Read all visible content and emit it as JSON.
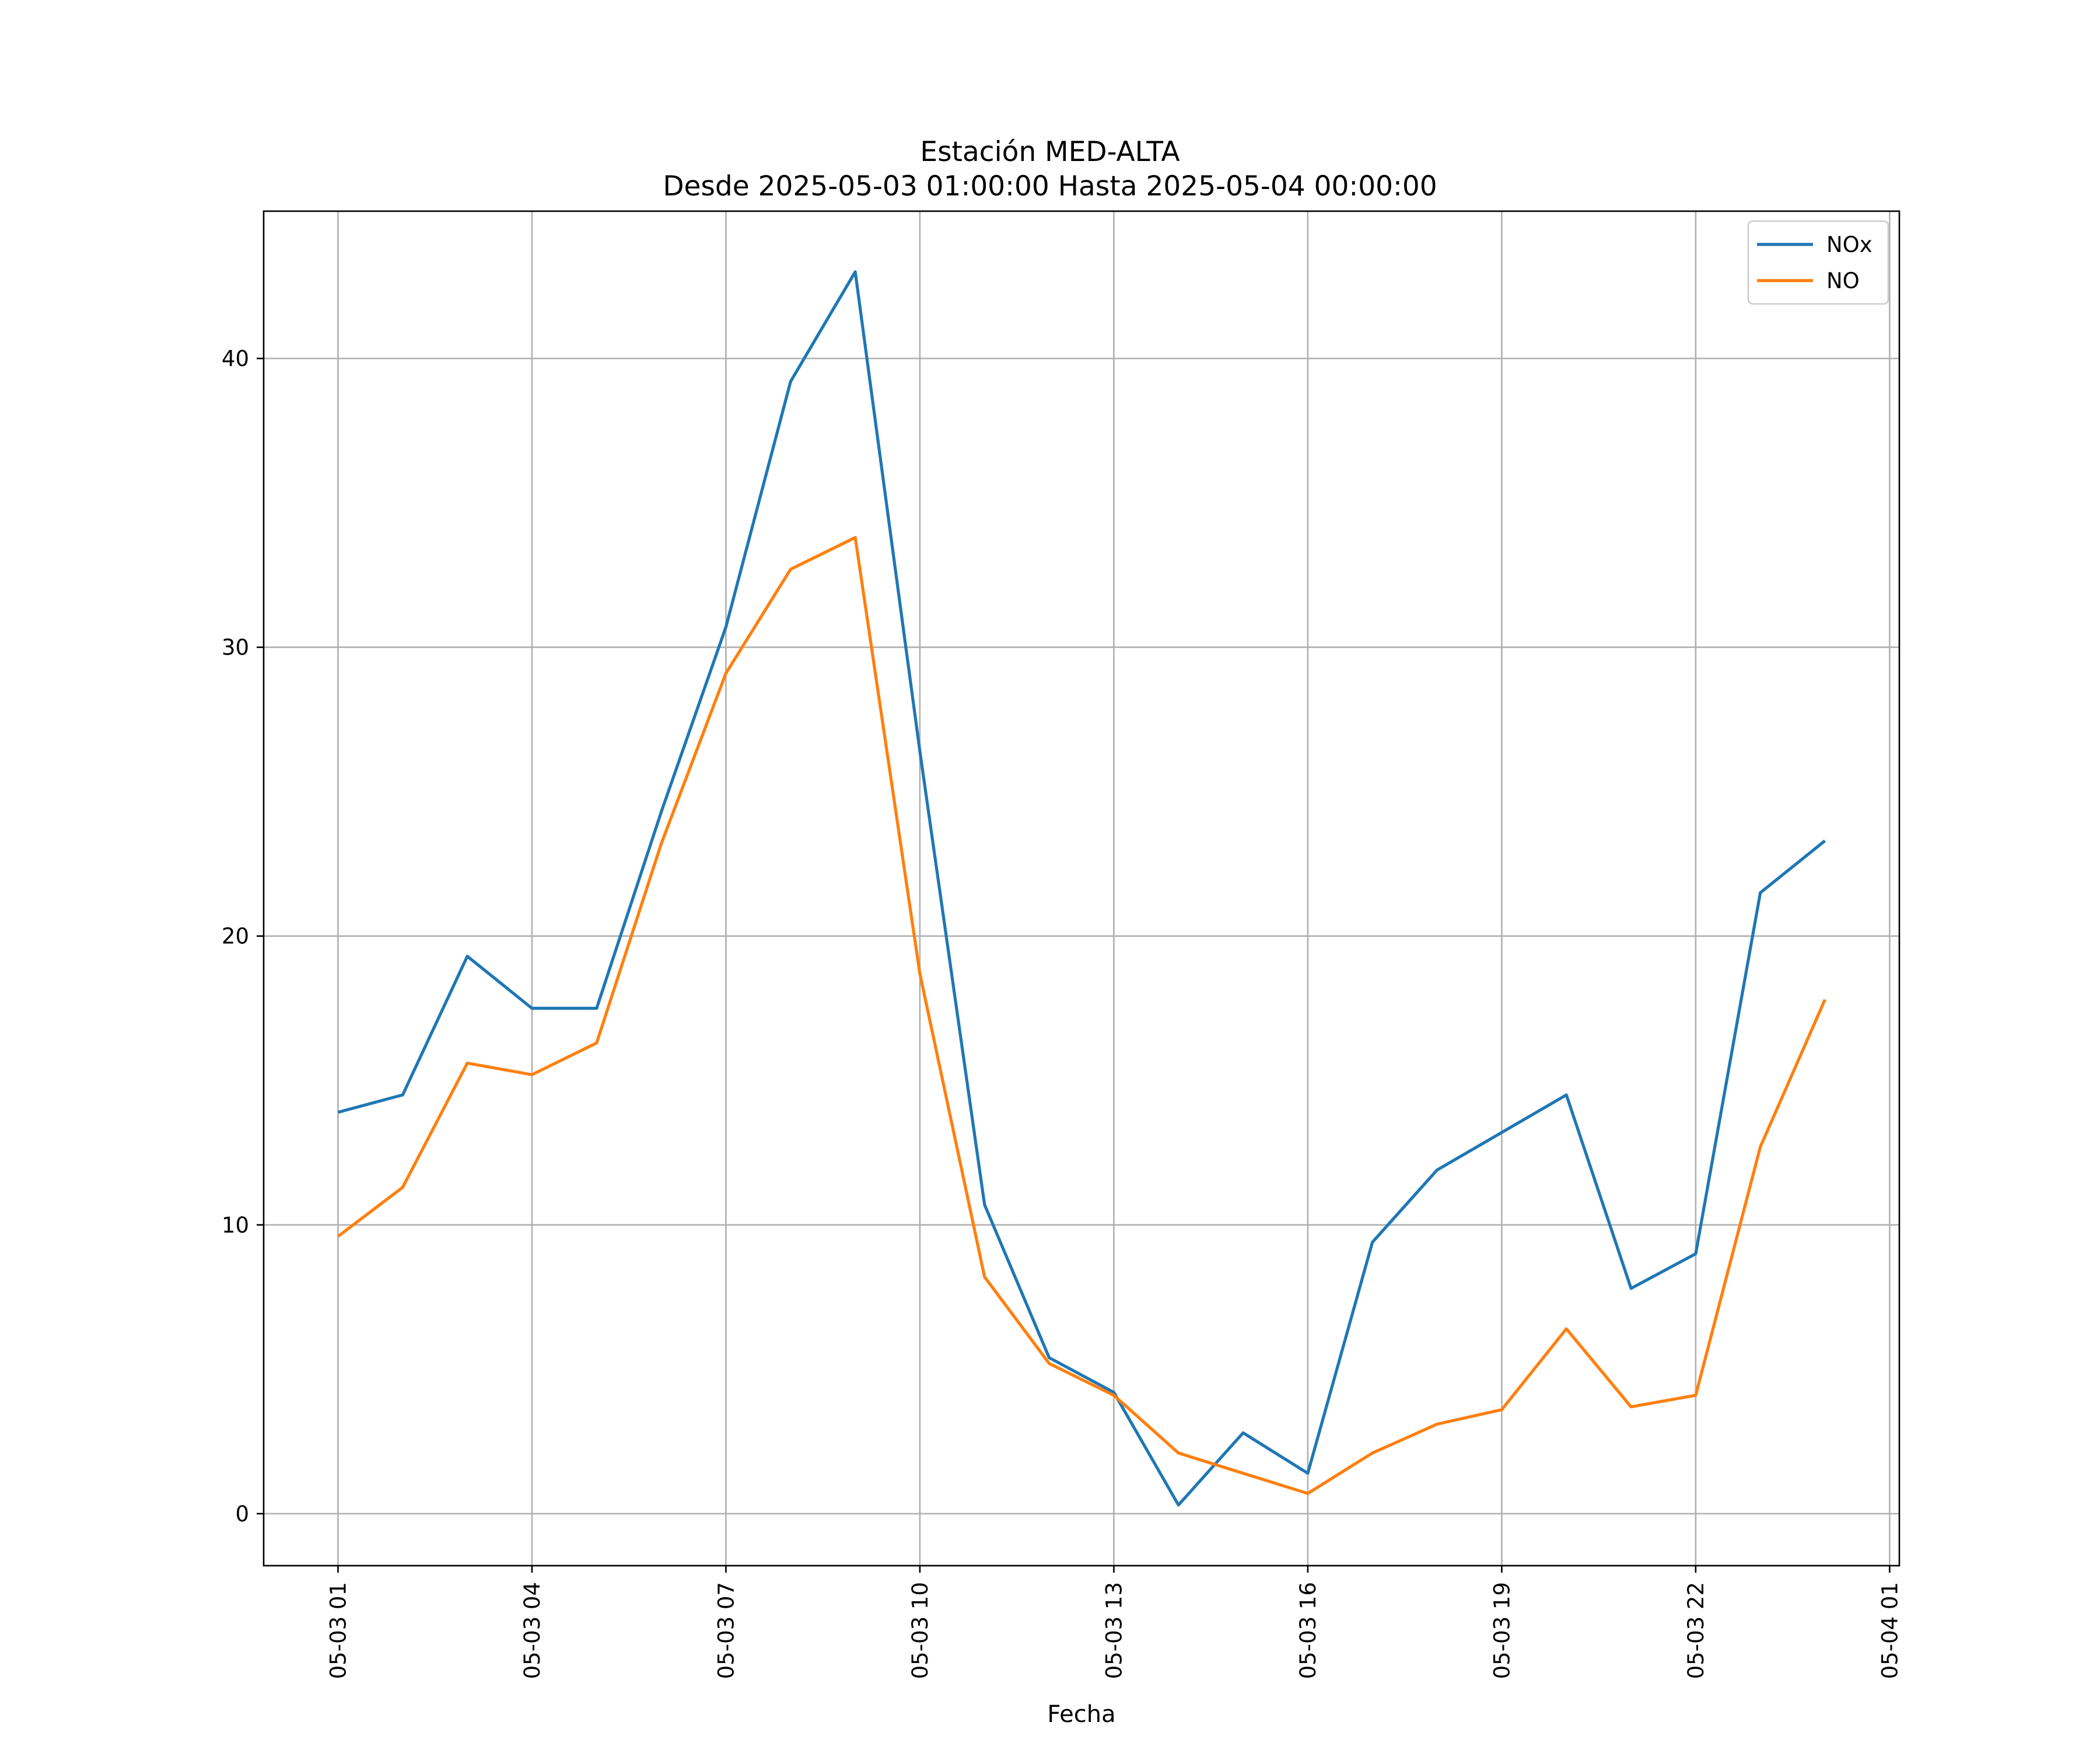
{
  "chart_data": {
    "type": "line",
    "title": "Estación MED-ALTA",
    "subtitle": "Desde 2025-05-03 01:00:00 Hasta 2025-05-04 00:00:00",
    "xlabel": "Fecha",
    "ylabel": "",
    "x": [
      "2025-05-03 01:00",
      "2025-05-03 02:00",
      "2025-05-03 03:00",
      "2025-05-03 04:00",
      "2025-05-03 05:00",
      "2025-05-03 06:00",
      "2025-05-03 07:00",
      "2025-05-03 08:00",
      "2025-05-03 09:00",
      "2025-05-03 10:00",
      "2025-05-03 11:00",
      "2025-05-03 12:00",
      "2025-05-03 13:00",
      "2025-05-03 14:00",
      "2025-05-03 15:00",
      "2025-05-03 16:00",
      "2025-05-03 17:00",
      "2025-05-03 18:00",
      "2025-05-03 19:00",
      "2025-05-03 20:00",
      "2025-05-03 21:00",
      "2025-05-03 22:00",
      "2025-05-03 23:00",
      "2025-05-04 00:00"
    ],
    "series": [
      {
        "name": "NOx",
        "color": "#1f77b4",
        "values": [
          13.9,
          14.5,
          19.3,
          17.5,
          17.5,
          24.3,
          30.7,
          39.2,
          43.0,
          26.4,
          10.7,
          5.4,
          4.2,
          0.3,
          2.8,
          1.4,
          9.4,
          11.9,
          13.2,
          14.5,
          7.8,
          9.0,
          21.5,
          23.3
        ]
      },
      {
        "name": "NO",
        "color": "#ff7f0e",
        "values": [
          9.6,
          11.3,
          15.6,
          15.2,
          16.3,
          23.2,
          29.1,
          32.7,
          33.8,
          18.7,
          8.2,
          5.2,
          4.1,
          2.1,
          1.4,
          0.7,
          2.1,
          3.1,
          3.6,
          6.4,
          3.7,
          4.1,
          12.7,
          17.8
        ]
      }
    ],
    "x_ticks": [
      "05-03 01",
      "05-03 04",
      "05-03 07",
      "05-03 10",
      "05-03 13",
      "05-03 16",
      "05-03 19",
      "05-03 22",
      "05-04 01"
    ],
    "x_tick_values": [
      "2025-05-03 01:00",
      "2025-05-03 04:00",
      "2025-05-03 07:00",
      "2025-05-03 10:00",
      "2025-05-03 13:00",
      "2025-05-03 16:00",
      "2025-05-03 19:00",
      "2025-05-03 22:00",
      "2025-05-04 01:00"
    ],
    "xlim": [
      "2025-05-02 23:51",
      "2025-05-04 01:09"
    ],
    "y_ticks": [
      0,
      10,
      20,
      30,
      40
    ],
    "ylim": [
      -1.8,
      45.1
    ],
    "grid": true,
    "legend_position": "top-right"
  }
}
